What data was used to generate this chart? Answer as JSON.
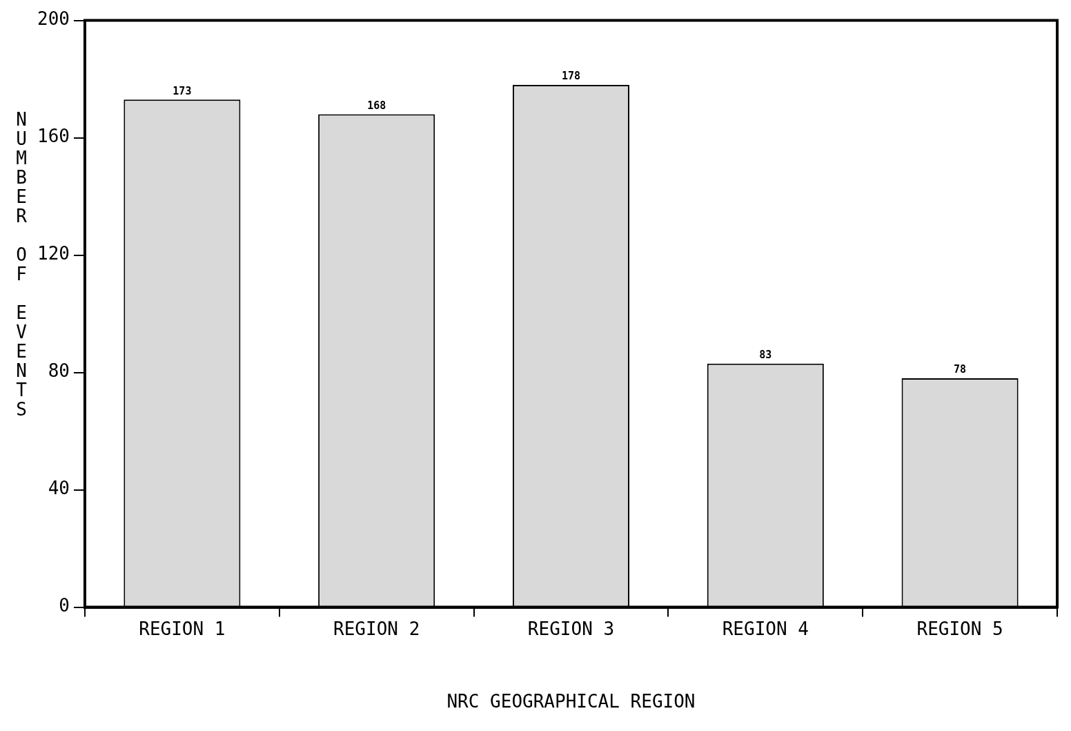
{
  "chart_data": {
    "type": "bar",
    "xlabel": "NRC GEOGRAPHICAL REGION",
    "ylabel": "NUMBER OF EVENTS",
    "categories": [
      "REGION 1",
      "REGION 2",
      "REGION 3",
      "REGION 4",
      "REGION 5"
    ],
    "values": [
      173,
      168,
      178,
      83,
      78
    ],
    "color": "#d9d9d9",
    "ylim": [
      0,
      200
    ],
    "yticks": [
      0,
      40,
      80,
      120,
      160,
      200
    ],
    "grid": false,
    "legend": false,
    "data_labels": true
  }
}
